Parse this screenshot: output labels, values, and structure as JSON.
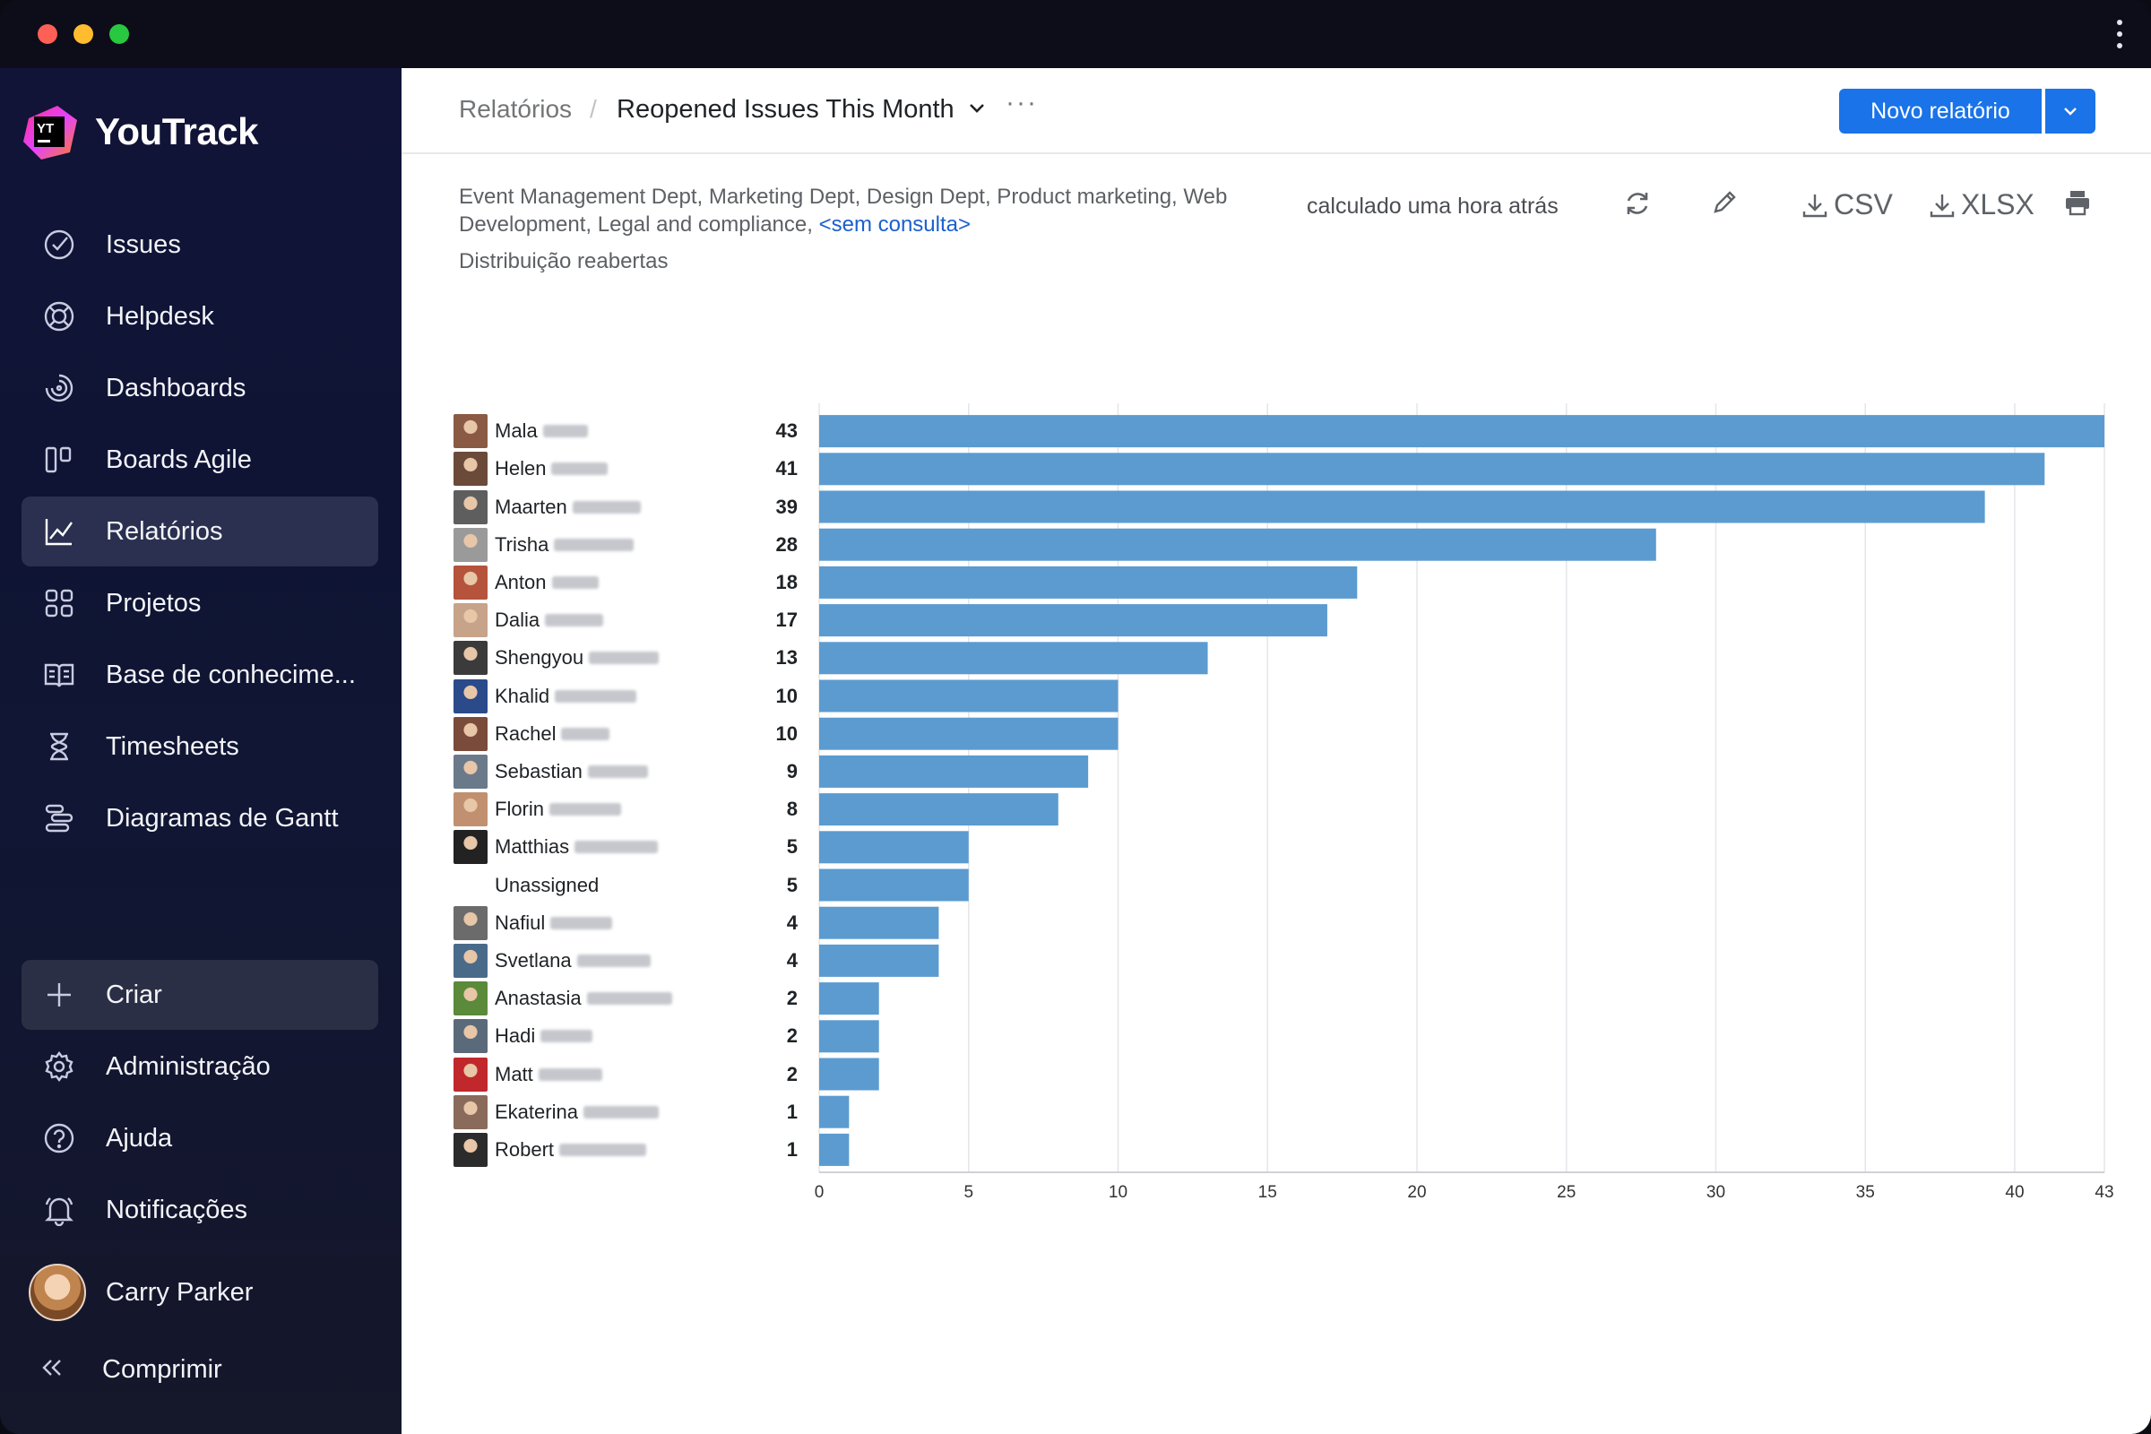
{
  "window": {
    "controls": [
      "close",
      "minimize",
      "maximize"
    ],
    "menu_icon": "kebab-icon"
  },
  "sidebar": {
    "brand": {
      "name": "YouTrack",
      "logo_text": "YT"
    },
    "items": [
      {
        "label": "Issues",
        "icon": "issues-check-icon"
      },
      {
        "label": "Helpdesk",
        "icon": "lifebuoy-icon"
      },
      {
        "label": "Dashboards",
        "icon": "dashboard-gauge-icon"
      },
      {
        "label": "Boards Agile",
        "icon": "agile-board-icon"
      },
      {
        "label": "Relatórios",
        "icon": "reports-chart-icon",
        "active": true
      },
      {
        "label": "Projetos",
        "icon": "projects-grid-icon"
      },
      {
        "label": "Base de conhecime...",
        "icon": "knowledge-book-icon"
      },
      {
        "label": "Timesheets",
        "icon": "hourglass-icon"
      },
      {
        "label": "Diagramas de Gantt",
        "icon": "gantt-icon"
      }
    ],
    "bottom": [
      {
        "label": "Criar",
        "icon": "plus-icon"
      },
      {
        "label": "Administração",
        "icon": "gear-icon"
      },
      {
        "label": "Ajuda",
        "icon": "help-icon"
      },
      {
        "label": "Notificações",
        "icon": "bell-icon"
      }
    ],
    "user": {
      "name": "Carry Parker"
    },
    "collapse_label": "Comprimir"
  },
  "header": {
    "breadcrumb_root": "Relatórios",
    "separator": "/",
    "report_title": "Reopened Issues This Month",
    "more": "···",
    "new_report_button": "Novo relatório"
  },
  "report": {
    "description": "Event Management Dept, Marketing Dept, Design Dept, Product marketing, Web Development, Legal and compliance, ",
    "query_link": "<sem consulta>",
    "subtitle": "Distribuição reabertas",
    "calculated": "calculado uma hora atrás",
    "export_csv": "CSV",
    "export_xlsx": "XLSX"
  },
  "colors": {
    "accent": "#1a73e8",
    "bar": "#5b9bd0",
    "sidebar_bg": "#111436"
  },
  "chart_data": {
    "type": "bar",
    "orientation": "horizontal",
    "categories": [
      "Mala",
      "Helen",
      "Maarten",
      "Trisha",
      "Anton",
      "Dalia",
      "Shengyou",
      "Khalid",
      "Rachel",
      "Sebastian",
      "Florin",
      "Matthias",
      "Unassigned",
      "Nafiul",
      "Svetlana",
      "Anastasia",
      "Hadi",
      "Matt",
      "Ekaterina",
      "Robert"
    ],
    "values": [
      43,
      41,
      39,
      28,
      18,
      17,
      13,
      10,
      10,
      9,
      8,
      5,
      5,
      4,
      4,
      2,
      2,
      2,
      1,
      1
    ],
    "xticks": [
      0,
      5,
      10,
      15,
      20,
      25,
      30,
      35,
      40,
      43
    ],
    "xlim": [
      0,
      43
    ],
    "grid": true
  }
}
